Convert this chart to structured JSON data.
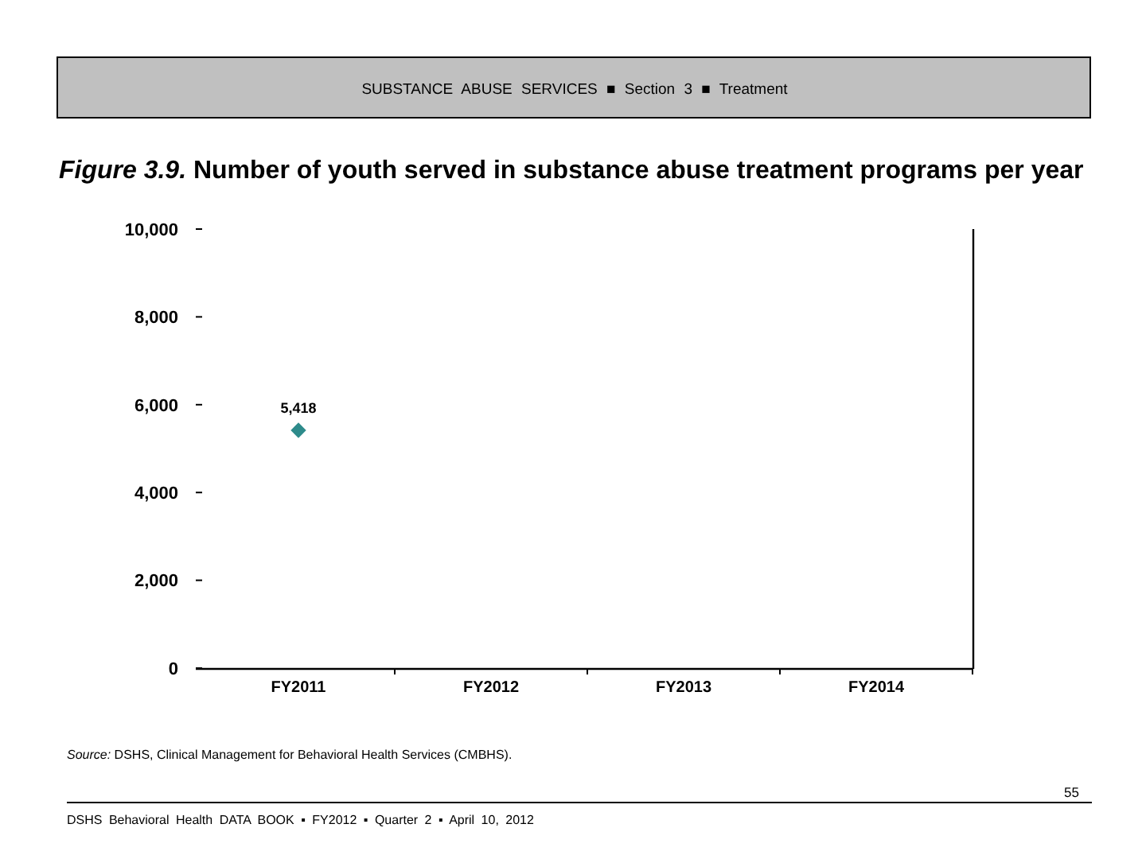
{
  "chart_data": {
    "type": "line",
    "title": "Figure 3.9.  Number of youth served in substance abuse treatment programs per year",
    "categories": [
      "FY2011",
      "FY2012",
      "FY2013",
      "FY2014"
    ],
    "series": [
      {
        "color": "#2e8b8b",
        "values": [
          5418,
          null,
          null,
          null
        ],
        "value_labels": [
          "5,418",
          null,
          null,
          null
        ]
      }
    ],
    "ylim": [
      0,
      10000
    ],
    "yticks": [
      0,
      {
        "value": 2000,
        "label": "2,000"
      },
      {
        "value": 4000,
        "label": "4,000"
      },
      {
        "value": 6000,
        "label": "6,000"
      },
      {
        "value": 8000,
        "label": "8,000"
      },
      {
        "value": 10000,
        "label": "10,000"
      }
    ],
    "marker": "diamond",
    "grid": false,
    "annotations": [
      "SUBSTANCE ABUSE SERVICES ■ Section 3 ■ Treatment",
      "Source: DSHS, Clinical Management for Behavioral Health Services (CMBHS).",
      "55",
      "DSHS Behavioral Health DATA BOOK ▪ FY2012 ▪ Quarter 2 ▪ April 10, 2012"
    ]
  }
}
